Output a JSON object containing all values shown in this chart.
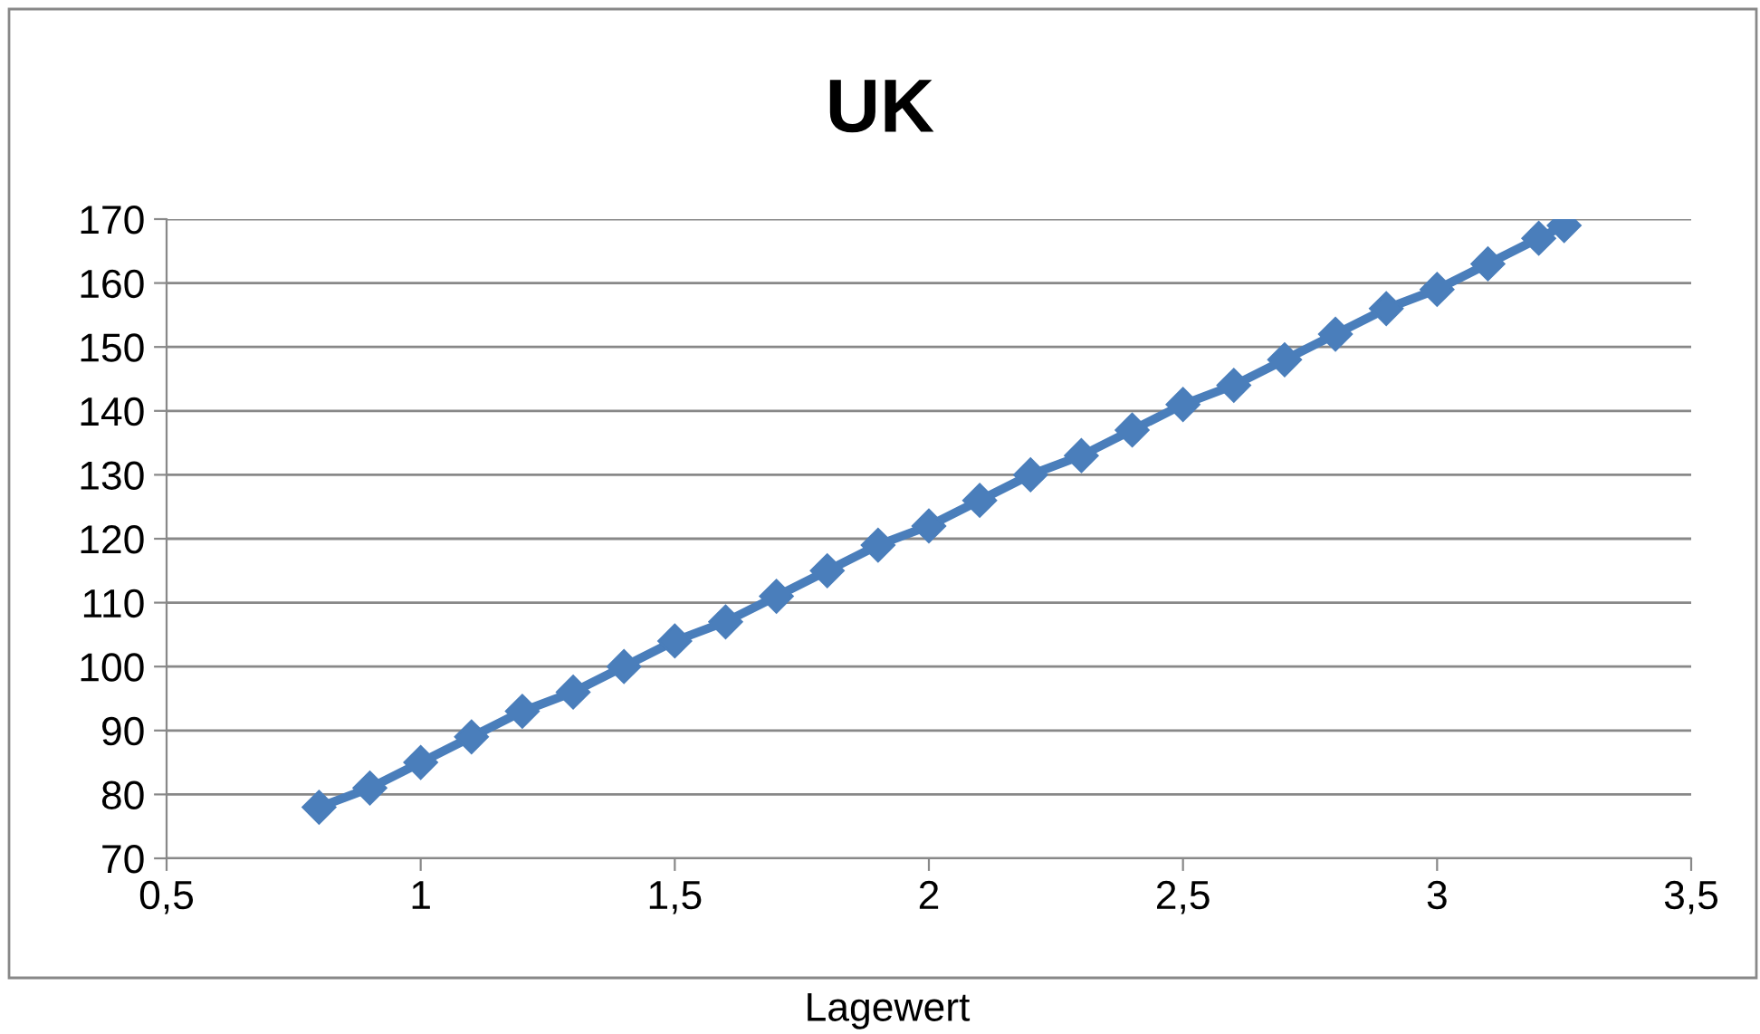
{
  "chart_data": {
    "type": "line",
    "title": "UK",
    "xlabel": "Lagewert",
    "x": [
      0.8,
      0.9,
      1.0,
      1.1,
      1.2,
      1.3,
      1.4,
      1.5,
      1.6,
      1.7,
      1.8,
      1.9,
      2.0,
      2.1,
      2.2,
      2.3,
      2.4,
      2.5,
      2.6,
      2.7,
      2.8,
      2.9,
      3.0,
      3.1,
      3.2,
      3.25
    ],
    "series": [
      {
        "color": "#4a7ebb",
        "values": [
          78,
          81,
          85,
          89,
          93,
          96,
          100,
          104,
          107,
          111,
          115,
          119,
          122,
          126,
          130,
          133,
          137,
          141,
          144,
          148,
          152,
          156,
          159,
          163,
          167,
          169
        ]
      }
    ],
    "xlim": [
      0.5,
      3.5
    ],
    "xticks": [
      {
        "value": 0.5,
        "label": "0,5"
      },
      1,
      {
        "value": 1.5,
        "label": "1,5"
      },
      2,
      {
        "value": 2.5,
        "label": "2,5"
      },
      3,
      {
        "value": 3.5,
        "label": "3,5"
      }
    ],
    "ylim": [
      70,
      170
    ],
    "yticks": [
      70,
      80,
      90,
      100,
      110,
      120,
      130,
      140,
      150,
      160,
      170
    ],
    "grid": "y",
    "legend": false,
    "marker": "diamond",
    "line_style": "solid"
  }
}
